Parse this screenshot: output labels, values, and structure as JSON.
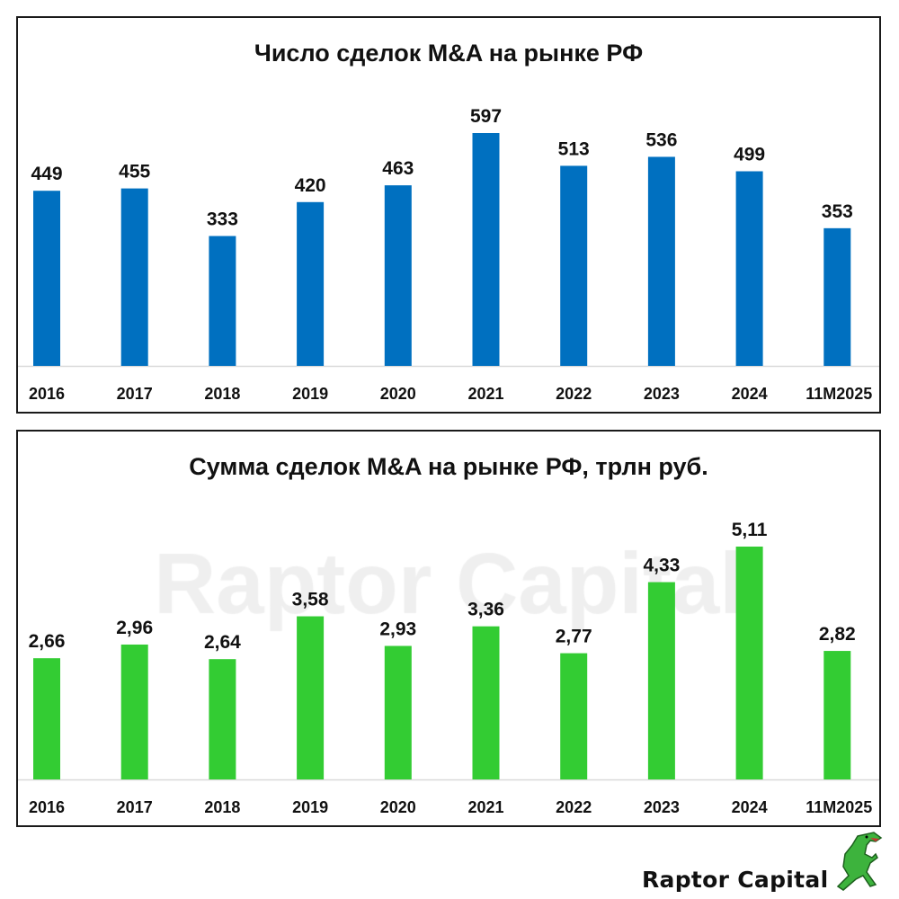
{
  "chart_data": [
    {
      "type": "bar",
      "title": "Число сделок M&A на рынке РФ",
      "categories": [
        "2016",
        "2017",
        "2018",
        "2019",
        "2020",
        "2021",
        "2022",
        "2023",
        "2024",
        "11M2025"
      ],
      "values": [
        449,
        455,
        333,
        420,
        463,
        597,
        513,
        536,
        499,
        353
      ],
      "labels": [
        "449",
        "455",
        "333",
        "420",
        "463",
        "597",
        "513",
        "536",
        "499",
        "353"
      ],
      "color": "#0070C0",
      "ylim": [
        0,
        597
      ],
      "grid": false,
      "legend": "none"
    },
    {
      "type": "bar",
      "title": "Сумма сделок M&A на рынке РФ, трлн руб.",
      "categories": [
        "2016",
        "2017",
        "2018",
        "2019",
        "2020",
        "2021",
        "2022",
        "2023",
        "2024",
        "11M2025"
      ],
      "values": [
        2.66,
        2.96,
        2.64,
        3.58,
        2.93,
        3.36,
        2.77,
        4.33,
        5.11,
        2.82
      ],
      "labels": [
        "2,66",
        "2,96",
        "2,64",
        "3,58",
        "2,93",
        "3,36",
        "2,77",
        "4,33",
        "5,11",
        "2,82"
      ],
      "color": "#33CC33",
      "ylim": [
        0,
        5.11
      ],
      "grid": false,
      "legend": "none"
    }
  ],
  "watermark": "Raptor Capital",
  "brand": "Raptor Capital"
}
